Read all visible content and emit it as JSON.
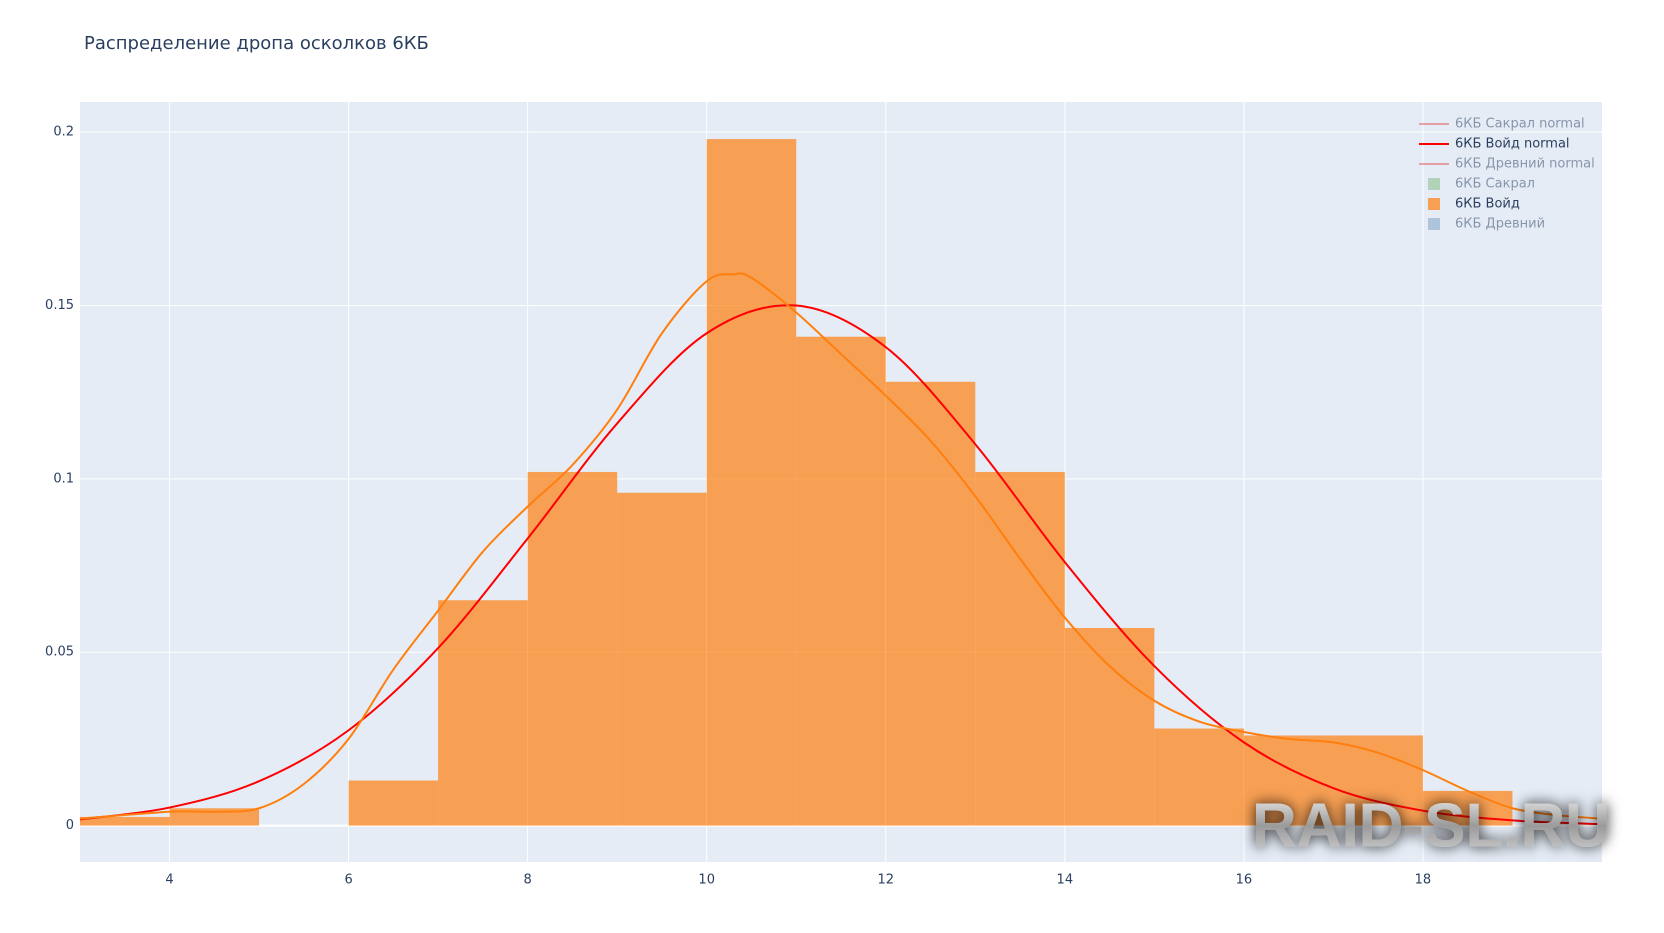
{
  "chart_data": {
    "type": "histogram",
    "title": "Распределение дропа осколков 6КБ",
    "bins": [
      3,
      4,
      5,
      6,
      7,
      8,
      9,
      10,
      11,
      12,
      13,
      14,
      15,
      16,
      17,
      18,
      19
    ],
    "series": [
      {
        "name": "6КБ Войд",
        "color": "#ff7f0e",
        "values": [
          0.0025,
          0.005,
          0,
          0.013,
          0.065,
          0.102,
          0.096,
          0.198,
          0.141,
          0.128,
          0.102,
          0.057,
          0.028,
          0.026,
          0.026,
          0.01
        ]
      }
    ],
    "lines": [
      {
        "name": "6КБ Войд normal",
        "color": "red",
        "x": [
          3,
          4,
          5,
          6,
          7,
          8,
          9,
          10,
          11,
          12,
          13,
          14,
          15,
          16,
          17,
          18,
          19,
          20
        ],
        "values": [
          0.0018,
          0.0052,
          0.0128,
          0.0275,
          0.0512,
          0.0828,
          0.116,
          0.142,
          0.15,
          0.138,
          0.11,
          0.076,
          0.046,
          0.024,
          0.0108,
          0.0043,
          0.0015,
          0.0004
        ]
      },
      {
        "color": "#ff7f0e",
        "x": [
          3,
          4,
          4.5,
          5,
          5.5,
          6,
          6.5,
          7,
          7.5,
          8,
          8.5,
          9,
          9.5,
          10,
          10.3,
          10.5,
          11,
          11.5,
          12,
          12.5,
          13,
          13.5,
          14,
          14.5,
          15,
          15.5,
          16,
          16.5,
          17,
          17.5,
          18,
          18.5,
          19,
          19.5,
          20
        ],
        "values": [
          0.002,
          0.004,
          0.004,
          0.005,
          0.012,
          0.025,
          0.045,
          0.062,
          0.079,
          0.092,
          0.104,
          0.12,
          0.142,
          0.157,
          0.159,
          0.158,
          0.148,
          0.136,
          0.124,
          0.111,
          0.095,
          0.077,
          0.06,
          0.046,
          0.036,
          0.03,
          0.027,
          0.025,
          0.024,
          0.021,
          0.016,
          0.01,
          0.005,
          0.003,
          0.002
        ]
      }
    ],
    "legend": [
      {
        "name": "6КБ Сакрал normal",
        "color": "#e45756",
        "symbol": "line",
        "visible": false
      },
      {
        "name": "6КБ Войд normal",
        "color": "red",
        "symbol": "line",
        "visible": true
      },
      {
        "name": "6КБ Древний normal",
        "color": "#e45756",
        "symbol": "line",
        "visible": false
      },
      {
        "name": "6КБ Сакрал",
        "color": "#54a24b",
        "symbol": "square",
        "visible": false
      },
      {
        "name": "6КБ Войд",
        "color": "#ff7f0e",
        "symbol": "square",
        "visible": true
      },
      {
        "name": "6КБ Древний",
        "color": "#4c78a8",
        "symbol": "square",
        "visible": false
      }
    ],
    "xlim": [
      3,
      20
    ],
    "ylim": [
      -0.0105,
      0.2087
    ],
    "xticks": [
      4,
      6,
      8,
      10,
      12,
      14,
      16,
      18
    ],
    "yticks": [
      0,
      0.05,
      0.1,
      0.15,
      0.2
    ],
    "grid": true,
    "watermark": "RAID-SL.RU"
  }
}
